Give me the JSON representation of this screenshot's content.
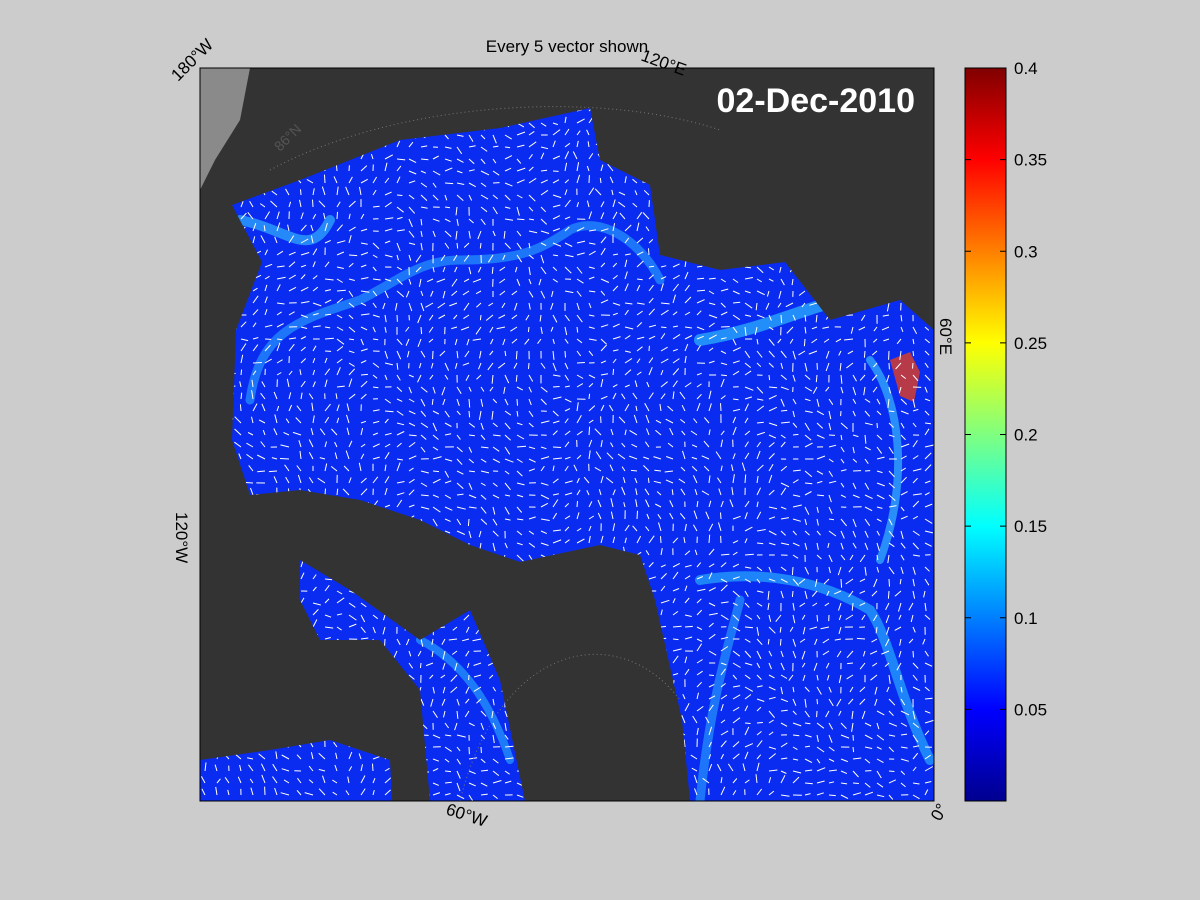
{
  "title": "Every 5 vector shown",
  "date_label": "02-Dec-2010",
  "map_labels": [
    "180°W",
    "120°E",
    "60°E",
    "0°",
    "60°W",
    "120°W",
    "86°N"
  ],
  "colorbar": {
    "lim": [
      0,
      0.4
    ],
    "ticks": [
      0.05,
      0.1,
      0.15,
      0.2,
      0.25,
      0.3,
      0.35,
      0.4
    ]
  }
}
